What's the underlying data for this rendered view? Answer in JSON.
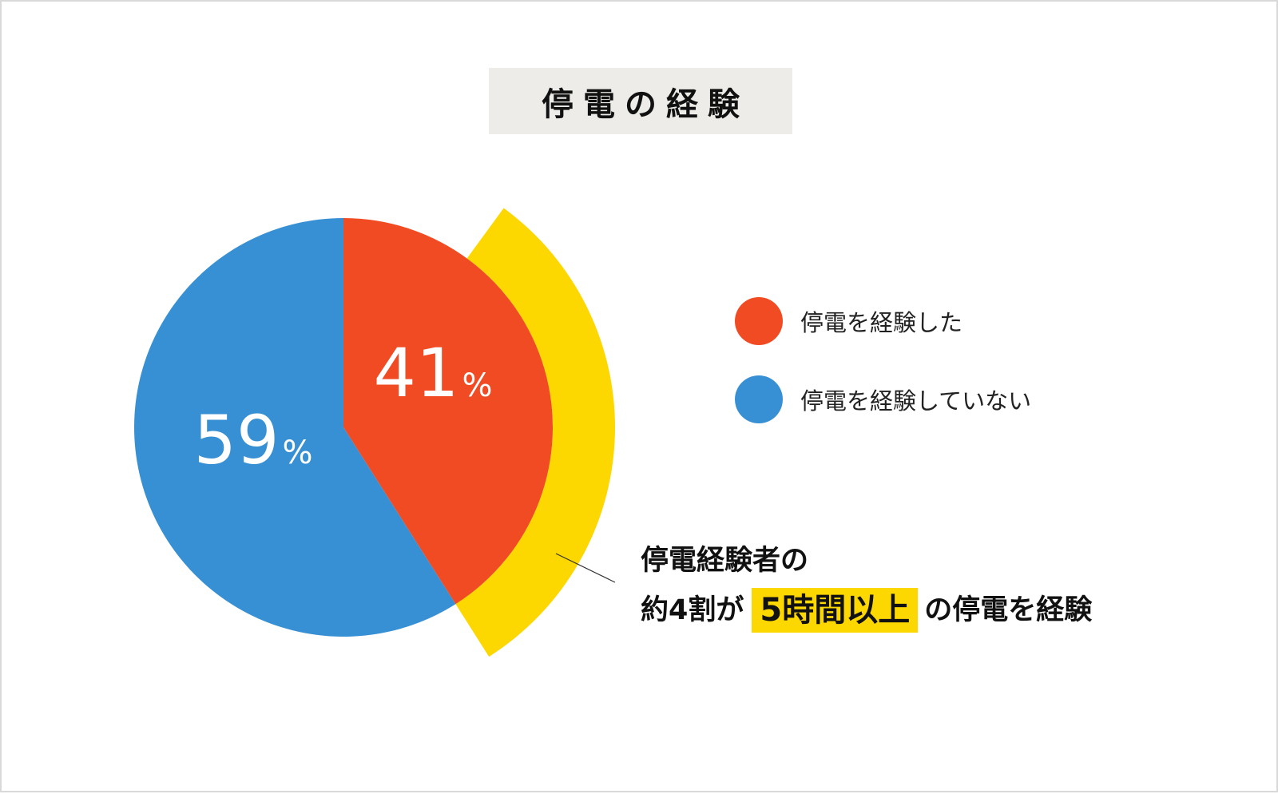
{
  "title": "停電の経験",
  "chart_data": {
    "type": "pie",
    "slices": [
      {
        "name": "停電を経験した",
        "value": 41,
        "color": "#f04b23"
      },
      {
        "name": "停電を経験していない",
        "value": 59,
        "color": "#3790d4"
      }
    ],
    "unit": "%",
    "highlight": {
      "slice_name": "停電を経験した",
      "value": 41,
      "color": "#fdd700"
    }
  },
  "legend": [
    {
      "label": "停電を経験した",
      "color": "#f04b23"
    },
    {
      "label": "停電を経験していない",
      "color": "#3790d4"
    }
  ],
  "callout": {
    "line1": "停電経験者の",
    "line2_pre": "約4割が",
    "line2_highlight": "5時間以上",
    "line2_post": "の停電を経験"
  }
}
